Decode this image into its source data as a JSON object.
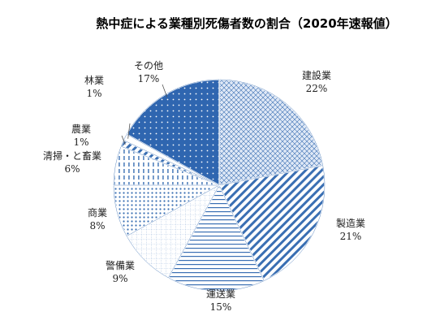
{
  "chart_data": {
    "type": "pie",
    "title": "熱中症による業種別死傷者数の割合（2020年速報値）",
    "slices": [
      {
        "label": "建設業",
        "value": 22,
        "value_text": "22%",
        "pattern": "grid"
      },
      {
        "label": "製造業",
        "value": 21,
        "value_text": "21%",
        "pattern": "diag"
      },
      {
        "label": "運送業",
        "value": 15,
        "value_text": "15%",
        "pattern": "hlines"
      },
      {
        "label": "警備業",
        "value": 9,
        "value_text": "9%",
        "pattern": "smallgrid"
      },
      {
        "label": "商業",
        "value": 8,
        "value_text": "8%",
        "pattern": "dots"
      },
      {
        "label": "清掃・と畜業",
        "value": 6,
        "value_text": "6%",
        "pattern": "vdash"
      },
      {
        "label": "農業",
        "value": 1,
        "value_text": "1%",
        "pattern": "diag"
      },
      {
        "label": "林業",
        "value": 1,
        "value_text": "1%",
        "pattern": "plain"
      },
      {
        "label": "その他",
        "value": 17,
        "value_text": "17%",
        "pattern": "solid-dots"
      }
    ],
    "start_angle": "12 o'clock",
    "direction": "clockwise",
    "legend": "none",
    "grid": false,
    "colors": {
      "primary": "#3a6fb3",
      "dark": "#2a5a9a",
      "outline": "#ffffff"
    }
  }
}
